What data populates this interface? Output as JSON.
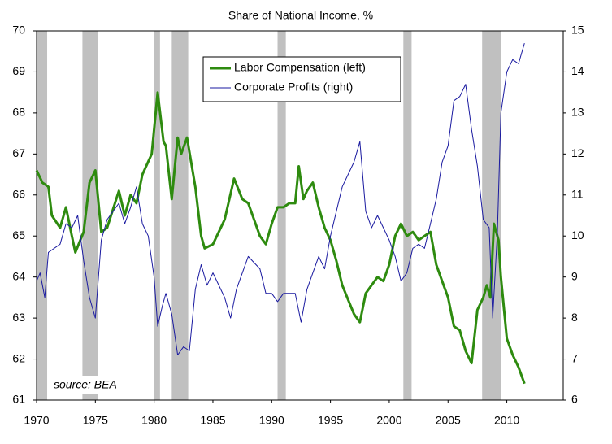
{
  "chart_data": {
    "type": "line",
    "title": "Share of National Income, %",
    "annotation": "source: BEA",
    "legend": "upper center",
    "grid": false,
    "xlim": [
      1970,
      2014.8
    ],
    "xticks": [
      1970,
      1975,
      1980,
      1985,
      1990,
      1995,
      2000,
      2005,
      2010
    ],
    "ylim": [
      61,
      70
    ],
    "yticks": [
      61,
      62,
      63,
      64,
      65,
      66,
      67,
      68,
      69,
      70
    ],
    "y2lim": [
      6,
      15
    ],
    "y2ticks": [
      6,
      7,
      8,
      9,
      10,
      11,
      12,
      13,
      14,
      15
    ],
    "shaded_color": "#c0c0c0",
    "shaded_periods": [
      [
        1969.9,
        1970.9
      ],
      [
        1973.9,
        1975.2
      ],
      [
        1980.0,
        1980.5
      ],
      [
        1981.5,
        1982.9
      ],
      [
        1990.5,
        1991.2
      ],
      [
        2001.2,
        2001.9
      ],
      [
        2007.9,
        2009.5
      ]
    ],
    "series": [
      {
        "name": "Labor Compensation (left)",
        "color": "#2e8b0f",
        "axis": "y",
        "x": [
          1970,
          1970.5,
          1971,
          1971.3,
          1972,
          1972.5,
          1973,
          1973.3,
          1974,
          1974.5,
          1975,
          1975.5,
          1976,
          1977,
          1977.5,
          1978,
          1978.5,
          1979,
          1979.8,
          1980.3,
          1980.8,
          1981,
          1981.5,
          1982,
          1982.3,
          1982.8,
          1983.5,
          1984,
          1984.3,
          1985,
          1986,
          1986.8,
          1987.5,
          1988,
          1989,
          1989.5,
          1990,
          1990.5,
          1991,
          1991.5,
          1992,
          1992.3,
          1992.7,
          1993,
          1993.5,
          1994,
          1994.5,
          1995,
          1995.5,
          1996,
          1997,
          1997.5,
          1998,
          1998.5,
          1999,
          1999.5,
          2000,
          2000.5,
          2001,
          2001.5,
          2002,
          2002.5,
          2003,
          2003.5,
          2004,
          2004.5,
          2005,
          2005.5,
          2006,
          2006.5,
          2007,
          2007.5,
          2008,
          2008.3,
          2008.6,
          2008.9,
          2009.3,
          2009.5,
          2010,
          2010.5,
          2011,
          2011.5
        ],
        "values": [
          66.6,
          66.3,
          66.2,
          65.5,
          65.2,
          65.7,
          65.0,
          64.6,
          65.1,
          66.3,
          66.6,
          65.1,
          65.2,
          66.1,
          65.5,
          66.0,
          65.8,
          66.5,
          67.0,
          68.5,
          67.3,
          67.2,
          65.9,
          67.4,
          67.0,
          67.4,
          66.2,
          65.0,
          64.7,
          64.8,
          65.4,
          66.4,
          65.9,
          65.8,
          65.0,
          64.8,
          65.3,
          65.7,
          65.7,
          65.8,
          65.8,
          66.7,
          65.9,
          66.1,
          66.3,
          65.7,
          65.2,
          64.9,
          64.4,
          63.8,
          63.1,
          62.9,
          63.6,
          63.8,
          64.0,
          63.9,
          64.3,
          65.0,
          65.3,
          65.0,
          65.1,
          64.9,
          65.0,
          65.1,
          64.3,
          63.9,
          63.5,
          62.8,
          62.7,
          62.2,
          61.9,
          63.2,
          63.5,
          63.8,
          63.5,
          65.3,
          64.9,
          64.0,
          62.5,
          62.1,
          61.8,
          61.4
        ]
      },
      {
        "name": "Corporate Profits (right)",
        "color": "#1a1aa0",
        "axis": "y2",
        "x": [
          1970,
          1970.3,
          1970.7,
          1971,
          1972,
          1972.5,
          1973,
          1973.5,
          1974,
          1974.5,
          1975,
          1975.5,
          1976,
          1977,
          1977.5,
          1978,
          1978.5,
          1979,
          1979.5,
          1980,
          1980.3,
          1980.7,
          1981,
          1981.5,
          1982,
          1982.5,
          1983,
          1983.5,
          1984,
          1984.5,
          1985,
          1986,
          1986.5,
          1987,
          1988,
          1989,
          1989.5,
          1990,
          1990.5,
          1991,
          1992,
          1992.5,
          1993,
          1994,
          1994.5,
          1995,
          1996,
          1997,
          1997.5,
          1998,
          1998.5,
          1999,
          1999.5,
          2000,
          2000.5,
          2001,
          2001.5,
          2002,
          2002.5,
          2003,
          2003.5,
          2004,
          2004.5,
          2005,
          2005.5,
          2006,
          2006.5,
          2007,
          2007.5,
          2008,
          2008.5,
          2008.8,
          2009.2,
          2009.5,
          2010,
          2010.5,
          2011,
          2011.5
        ],
        "values": [
          8.9,
          9.1,
          8.5,
          9.6,
          9.8,
          10.3,
          10.2,
          10.5,
          9.4,
          8.5,
          8.0,
          9.9,
          10.4,
          10.8,
          10.3,
          10.7,
          11.2,
          10.3,
          10.0,
          9.0,
          7.8,
          8.3,
          8.6,
          8.1,
          7.1,
          7.3,
          7.2,
          8.7,
          9.3,
          8.8,
          9.1,
          8.5,
          8.0,
          8.7,
          9.5,
          9.2,
          8.6,
          8.6,
          8.4,
          8.6,
          8.6,
          7.9,
          8.7,
          9.5,
          9.2,
          10.0,
          11.2,
          11.8,
          12.3,
          10.6,
          10.2,
          10.5,
          10.2,
          9.9,
          9.5,
          8.9,
          9.1,
          9.7,
          9.8,
          9.7,
          10.3,
          10.9,
          11.8,
          12.2,
          13.3,
          13.4,
          13.7,
          12.6,
          11.7,
          10.4,
          10.2,
          8.0,
          10.1,
          13.0,
          14.0,
          14.3,
          14.2,
          14.7
        ]
      }
    ]
  }
}
